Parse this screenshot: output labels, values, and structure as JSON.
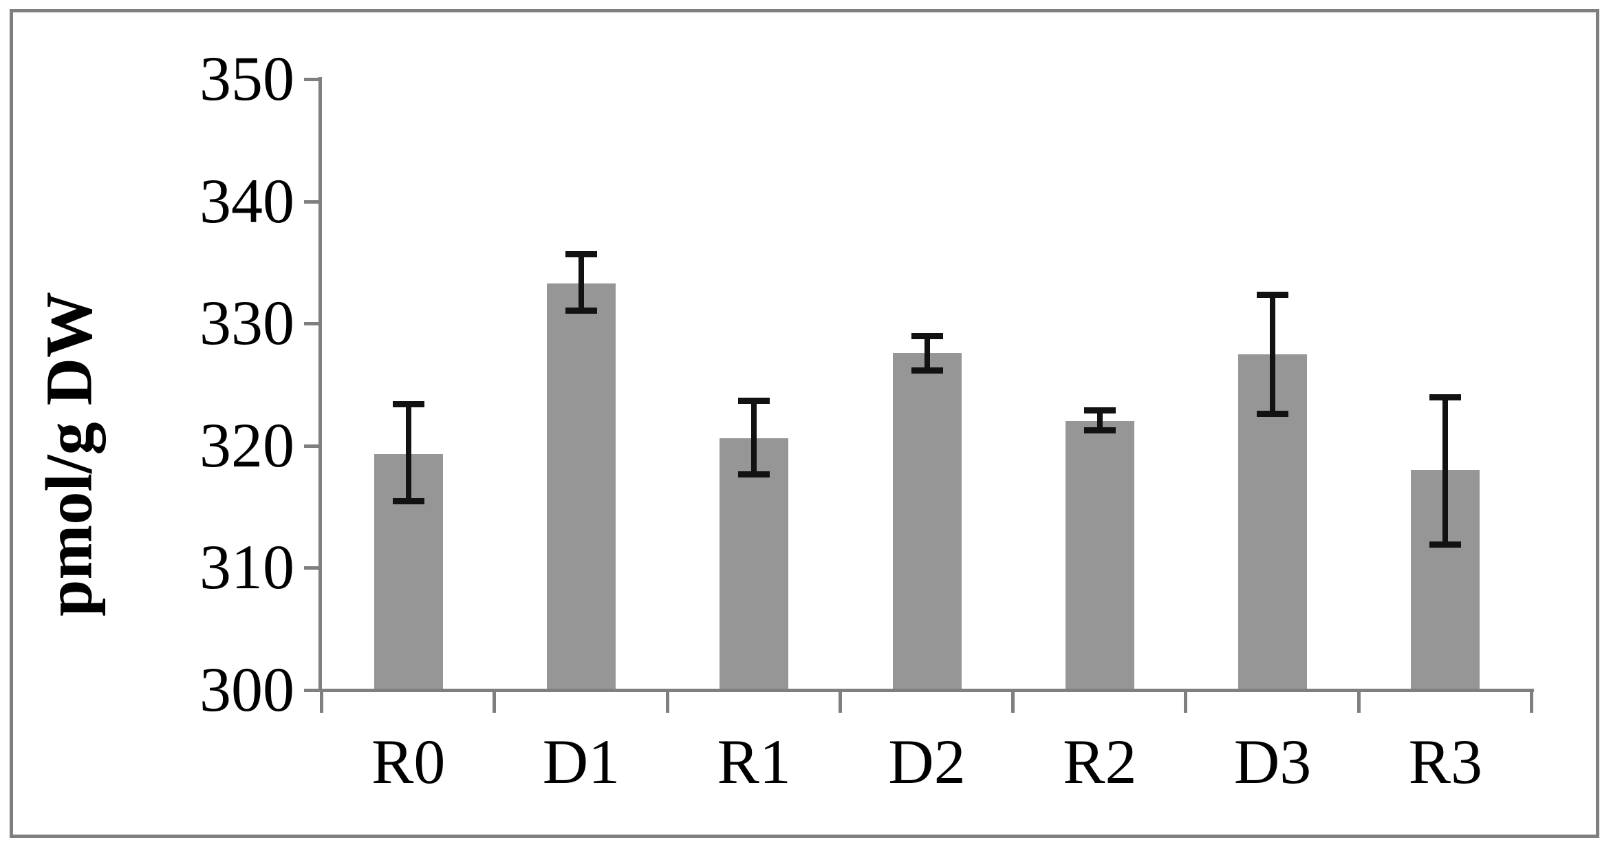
{
  "figure": {
    "background_color": "#ffffff",
    "border_color": "#7f7f7f",
    "axis_color": "#7f7f7f",
    "bar_color": "#969696",
    "error_bar_color": "#121212",
    "text_color": "#000000"
  },
  "chart_data": {
    "type": "bar",
    "title": "",
    "xlabel": "",
    "ylabel": "pmol/g DW",
    "categories": [
      "R0",
      "D1",
      "R1",
      "D2",
      "R2",
      "D3",
      "R3"
    ],
    "values": [
      319.3,
      333.3,
      320.6,
      327.6,
      322.0,
      327.5,
      318.0
    ],
    "errors_up": [
      4.1,
      2.4,
      3.1,
      1.4,
      0.9,
      4.9,
      6.0
    ],
    "errors_down": [
      3.9,
      2.3,
      3.0,
      1.5,
      0.8,
      4.9,
      6.1
    ],
    "ylim": [
      300,
      350
    ],
    "yticks": [
      350,
      340,
      330,
      320,
      310,
      300
    ],
    "ytick_labels": [
      "350",
      "340",
      "330",
      "320",
      "310",
      "300"
    ],
    "grid": false,
    "legend": null,
    "error_bars": true,
    "bar_color": "#969696"
  }
}
